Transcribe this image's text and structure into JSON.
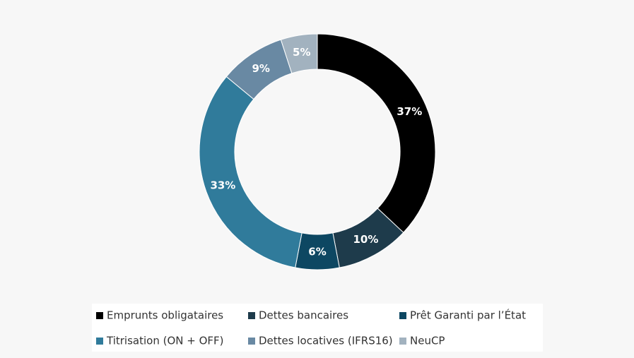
{
  "chart_data": {
    "type": "donut",
    "categories": [
      "Emprunts obligataires",
      "Dettes bancaires",
      "Prêt Garanti par l’État",
      "Titrisation (ON + OFF)",
      "Dettes locatives (IFRS16)",
      "NeuCP"
    ],
    "values": [
      37,
      10,
      6,
      33,
      9,
      5
    ],
    "value_labels": [
      "37%",
      "10%",
      "6%",
      "33%",
      "9%",
      "5%"
    ],
    "colors": [
      "#000000",
      "#1e3b4b",
      "#0d4762",
      "#307b9b",
      "#6989a3",
      "#a2b2bf"
    ],
    "legend": "bottom"
  }
}
